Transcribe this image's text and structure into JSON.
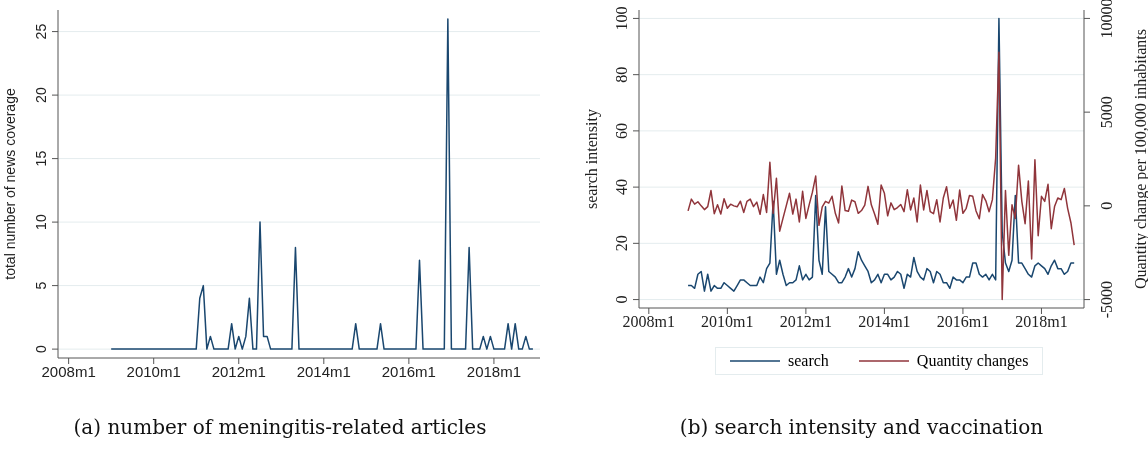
{
  "chart_data": [
    {
      "type": "line",
      "title": "(a) number of meningitis-related articles",
      "ylabel": "total number of news coverage",
      "x": [
        "2009-01",
        "2011-01",
        "2011-02",
        "2011-03",
        "2011-04",
        "2011-05",
        "2011-06",
        "2011-10",
        "2011-11",
        "2011-12",
        "2012-01",
        "2012-02",
        "2012-03",
        "2012-04",
        "2012-05",
        "2012-06",
        "2012-07",
        "2012-08",
        "2012-09",
        "2012-10",
        "2013-04",
        "2013-05",
        "2013-06",
        "2014-09",
        "2014-10",
        "2014-11",
        "2015-04",
        "2015-05",
        "2015-06",
        "2016-03",
        "2016-04",
        "2016-05",
        "2016-11",
        "2016-12",
        "2017-01",
        "2017-05",
        "2017-06",
        "2017-07",
        "2017-09",
        "2017-10",
        "2017-11",
        "2017-12",
        "2018-01",
        "2018-04",
        "2018-05",
        "2018-06",
        "2018-07",
        "2018-08",
        "2018-09",
        "2018-10",
        "2018-11",
        "2018-12"
      ],
      "values": [
        0,
        0,
        4,
        5,
        0,
        1,
        0,
        0,
        2,
        0,
        1,
        0,
        1,
        4,
        0,
        0,
        10,
        1,
        1,
        0,
        0,
        8,
        0,
        0,
        2,
        0,
        0,
        2,
        0,
        0,
        7,
        0,
        0,
        26,
        0,
        0,
        8,
        0,
        0,
        1,
        0,
        1,
        0,
        0,
        2,
        0,
        2,
        0,
        0,
        1,
        0,
        0
      ],
      "color": "#1a476f",
      "xlim": [
        "2007-10",
        "2019-02"
      ],
      "xticks": [
        {
          "value": "2008-01",
          "label": "2008m1"
        },
        {
          "value": "2010-01",
          "label": "2010m1"
        },
        {
          "value": "2012-01",
          "label": "2012m1"
        },
        {
          "value": "2014-01",
          "label": "2014m1"
        },
        {
          "value": "2016-01",
          "label": "2016m1"
        },
        {
          "value": "2018-01",
          "label": "2018m1"
        }
      ],
      "ylim": [
        -0.7,
        26.7
      ],
      "yticks": [
        0,
        5,
        10,
        15,
        20,
        25
      ],
      "grid": "y"
    },
    {
      "type": "line",
      "title": "(b) search intensity and vaccination",
      "ylabel": "search intensity",
      "y2label": "Quantity change per 100,000 inhabitants",
      "x": [
        "2009-01",
        "2009-02",
        "2009-03",
        "2009-04",
        "2009-05",
        "2009-06",
        "2009-07",
        "2009-08",
        "2009-09",
        "2009-10",
        "2009-11",
        "2009-12",
        "2010-01",
        "2010-02",
        "2010-03",
        "2010-04",
        "2010-05",
        "2010-06",
        "2010-07",
        "2010-08",
        "2010-09",
        "2010-10",
        "2010-11",
        "2010-12",
        "2011-01",
        "2011-02",
        "2011-03",
        "2011-04",
        "2011-05",
        "2011-06",
        "2011-07",
        "2011-08",
        "2011-09",
        "2011-10",
        "2011-11",
        "2011-12",
        "2012-01",
        "2012-02",
        "2012-03",
        "2012-04",
        "2012-05",
        "2012-06",
        "2012-07",
        "2012-08",
        "2012-09",
        "2012-10",
        "2012-11",
        "2012-12",
        "2013-01",
        "2013-02",
        "2013-03",
        "2013-04",
        "2013-05",
        "2013-06",
        "2013-07",
        "2013-08",
        "2013-09",
        "2013-10",
        "2013-11",
        "2013-12",
        "2014-01",
        "2014-02",
        "2014-03",
        "2014-04",
        "2014-05",
        "2014-06",
        "2014-07",
        "2014-08",
        "2014-09",
        "2014-10",
        "2014-11",
        "2014-12",
        "2015-01",
        "2015-02",
        "2015-03",
        "2015-04",
        "2015-05",
        "2015-06",
        "2015-07",
        "2015-08",
        "2015-09",
        "2015-10",
        "2015-11",
        "2015-12",
        "2016-01",
        "2016-02",
        "2016-03",
        "2016-04",
        "2016-05",
        "2016-06",
        "2016-07",
        "2016-08",
        "2016-09",
        "2016-10",
        "2016-11",
        "2016-12",
        "2017-01",
        "2017-02",
        "2017-03",
        "2017-04",
        "2017-05",
        "2017-06",
        "2017-07",
        "2017-08",
        "2017-09",
        "2017-10",
        "2017-11",
        "2017-12",
        "2018-01",
        "2018-02",
        "2018-03",
        "2018-04",
        "2018-05",
        "2018-06",
        "2018-07",
        "2018-08",
        "2018-09",
        "2018-10",
        "2018-11"
      ],
      "series": [
        {
          "name": "search",
          "color": "#1a476f",
          "values": [
            5,
            5,
            4,
            9,
            10,
            3,
            9,
            3,
            5,
            4,
            4,
            6,
            5,
            4,
            3,
            5,
            7,
            7,
            6,
            5,
            5,
            5,
            8,
            6,
            11,
            13,
            35,
            9,
            14,
            9,
            5,
            6,
            6,
            7,
            12,
            7,
            9,
            7,
            8,
            37,
            14,
            9,
            33,
            10,
            9,
            8,
            6,
            6,
            8,
            11,
            8,
            11,
            17,
            14,
            12,
            10,
            6,
            7,
            9,
            6,
            9,
            9,
            7,
            8,
            10,
            9,
            4,
            9,
            8,
            15,
            10,
            8,
            7,
            11,
            10,
            6,
            10,
            9,
            6,
            6,
            4,
            8,
            7,
            7,
            6,
            8,
            8,
            13,
            13,
            9,
            8,
            9,
            7,
            9,
            7,
            100,
            24,
            13,
            10,
            14,
            37,
            13,
            13,
            11,
            9,
            8,
            12,
            13,
            12,
            11,
            9,
            12,
            14,
            11,
            11,
            9,
            10,
            13,
            13
          ]
        },
        {
          "name": "Quantity changes",
          "color": "#90353b",
          "axis": "y2",
          "values": [
            -270,
            360,
            90,
            220,
            0,
            -200,
            -40,
            820,
            -420,
            55,
            -440,
            380,
            -130,
            90,
            0,
            -50,
            250,
            -350,
            240,
            360,
            -40,
            200,
            -450,
            600,
            -350,
            2330,
            -400,
            1470,
            -1350,
            -670,
            0,
            670,
            -440,
            360,
            -860,
            780,
            -670,
            55,
            730,
            1590,
            -1040,
            -50,
            240,
            150,
            510,
            -400,
            -910,
            1060,
            -250,
            -290,
            310,
            220,
            -400,
            -250,
            40,
            1040,
            55,
            -440,
            -980,
            1110,
            670,
            -530,
            160,
            -200,
            -90,
            70,
            -310,
            860,
            -220,
            420,
            -860,
            1110,
            -220,
            820,
            -310,
            -420,
            330,
            -860,
            420,
            1020,
            -130,
            310,
            -770,
            840,
            -400,
            -130,
            550,
            510,
            -270,
            -690,
            600,
            270,
            -310,
            330,
            2550,
            8190,
            -5000,
            820,
            -2640,
            55,
            -670,
            2170,
            240,
            -950,
            1330,
            -2840,
            2460,
            -1590,
            510,
            240,
            1150,
            -1220,
            -40,
            420,
            330,
            930,
            -130,
            -900,
            -2090
          ]
        }
      ],
      "xlim": [
        "2007-10",
        "2019-02"
      ],
      "xticks": [
        {
          "value": "2008-01",
          "label": "2008m1"
        },
        {
          "value": "2010-01",
          "label": "2010m1"
        },
        {
          "value": "2012-01",
          "label": "2012m1"
        },
        {
          "value": "2014-01",
          "label": "2014m1"
        },
        {
          "value": "2016-01",
          "label": "2016m1"
        },
        {
          "value": "2018-01",
          "label": "2018m1"
        }
      ],
      "ylim": [
        -3,
        103
      ],
      "yticks": [
        0,
        20,
        40,
        60,
        80,
        100
      ],
      "y2lim": [
        -5450,
        10450
      ],
      "y2ticks": [
        -5000,
        0,
        5000,
        10000
      ],
      "grid": "y",
      "legend": "bottom"
    }
  ]
}
